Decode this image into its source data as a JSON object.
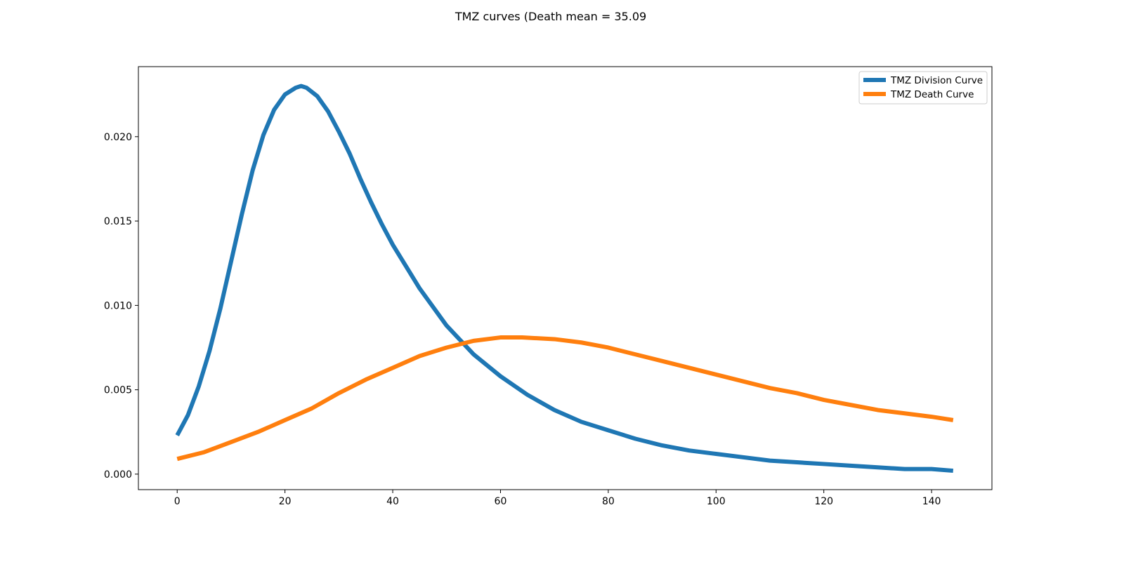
{
  "chart_data": {
    "type": "line",
    "title": "TMZ curves (Death mean = 35.09",
    "xlabel": "",
    "ylabel": "",
    "xlim": [
      -7.2,
      151.2
    ],
    "ylim": [
      -0.00092,
      0.02415
    ],
    "xticks": [
      0,
      20,
      40,
      60,
      80,
      100,
      120,
      140
    ],
    "yticks": [
      0.0,
      0.005,
      0.01,
      0.015,
      0.02
    ],
    "ytick_labels": [
      "0.000",
      "0.005",
      "0.010",
      "0.015",
      "0.020"
    ],
    "grid": false,
    "legend": {
      "placement": "top-right"
    },
    "series": [
      {
        "name": "TMZ Division Curve",
        "color": "#1f77b4",
        "x": [
          0,
          2,
          4,
          6,
          8,
          10,
          12,
          14,
          16,
          18,
          20,
          22,
          23,
          24,
          26,
          28,
          30,
          32,
          34,
          36,
          38,
          40,
          45,
          50,
          55,
          60,
          65,
          70,
          75,
          80,
          85,
          90,
          95,
          100,
          105,
          110,
          115,
          120,
          125,
          130,
          135,
          140,
          144
        ],
        "y": [
          0.0023,
          0.0035,
          0.0052,
          0.0073,
          0.0098,
          0.0126,
          0.0154,
          0.018,
          0.0201,
          0.0216,
          0.0225,
          0.0229,
          0.023,
          0.0229,
          0.0224,
          0.0215,
          0.0203,
          0.019,
          0.0175,
          0.0161,
          0.0148,
          0.0136,
          0.011,
          0.0088,
          0.0071,
          0.0058,
          0.0047,
          0.0038,
          0.0031,
          0.0026,
          0.0021,
          0.0017,
          0.0014,
          0.0012,
          0.001,
          0.0008,
          0.0007,
          0.0006,
          0.0005,
          0.0004,
          0.0003,
          0.0003,
          0.0002
        ]
      },
      {
        "name": "TMZ Death Curve",
        "color": "#ff7f0e",
        "x": [
          0,
          5,
          10,
          15,
          20,
          25,
          30,
          35,
          40,
          45,
          50,
          55,
          60,
          64,
          70,
          75,
          80,
          85,
          90,
          95,
          100,
          105,
          110,
          115,
          120,
          125,
          130,
          135,
          140,
          144
        ],
        "y": [
          0.0009,
          0.0013,
          0.0019,
          0.0025,
          0.0032,
          0.0039,
          0.0048,
          0.0056,
          0.0063,
          0.007,
          0.0075,
          0.0079,
          0.0081,
          0.0081,
          0.008,
          0.0078,
          0.0075,
          0.0071,
          0.0067,
          0.0063,
          0.0059,
          0.0055,
          0.0051,
          0.0048,
          0.0044,
          0.0041,
          0.0038,
          0.0036,
          0.0034,
          0.0032
        ]
      }
    ]
  }
}
